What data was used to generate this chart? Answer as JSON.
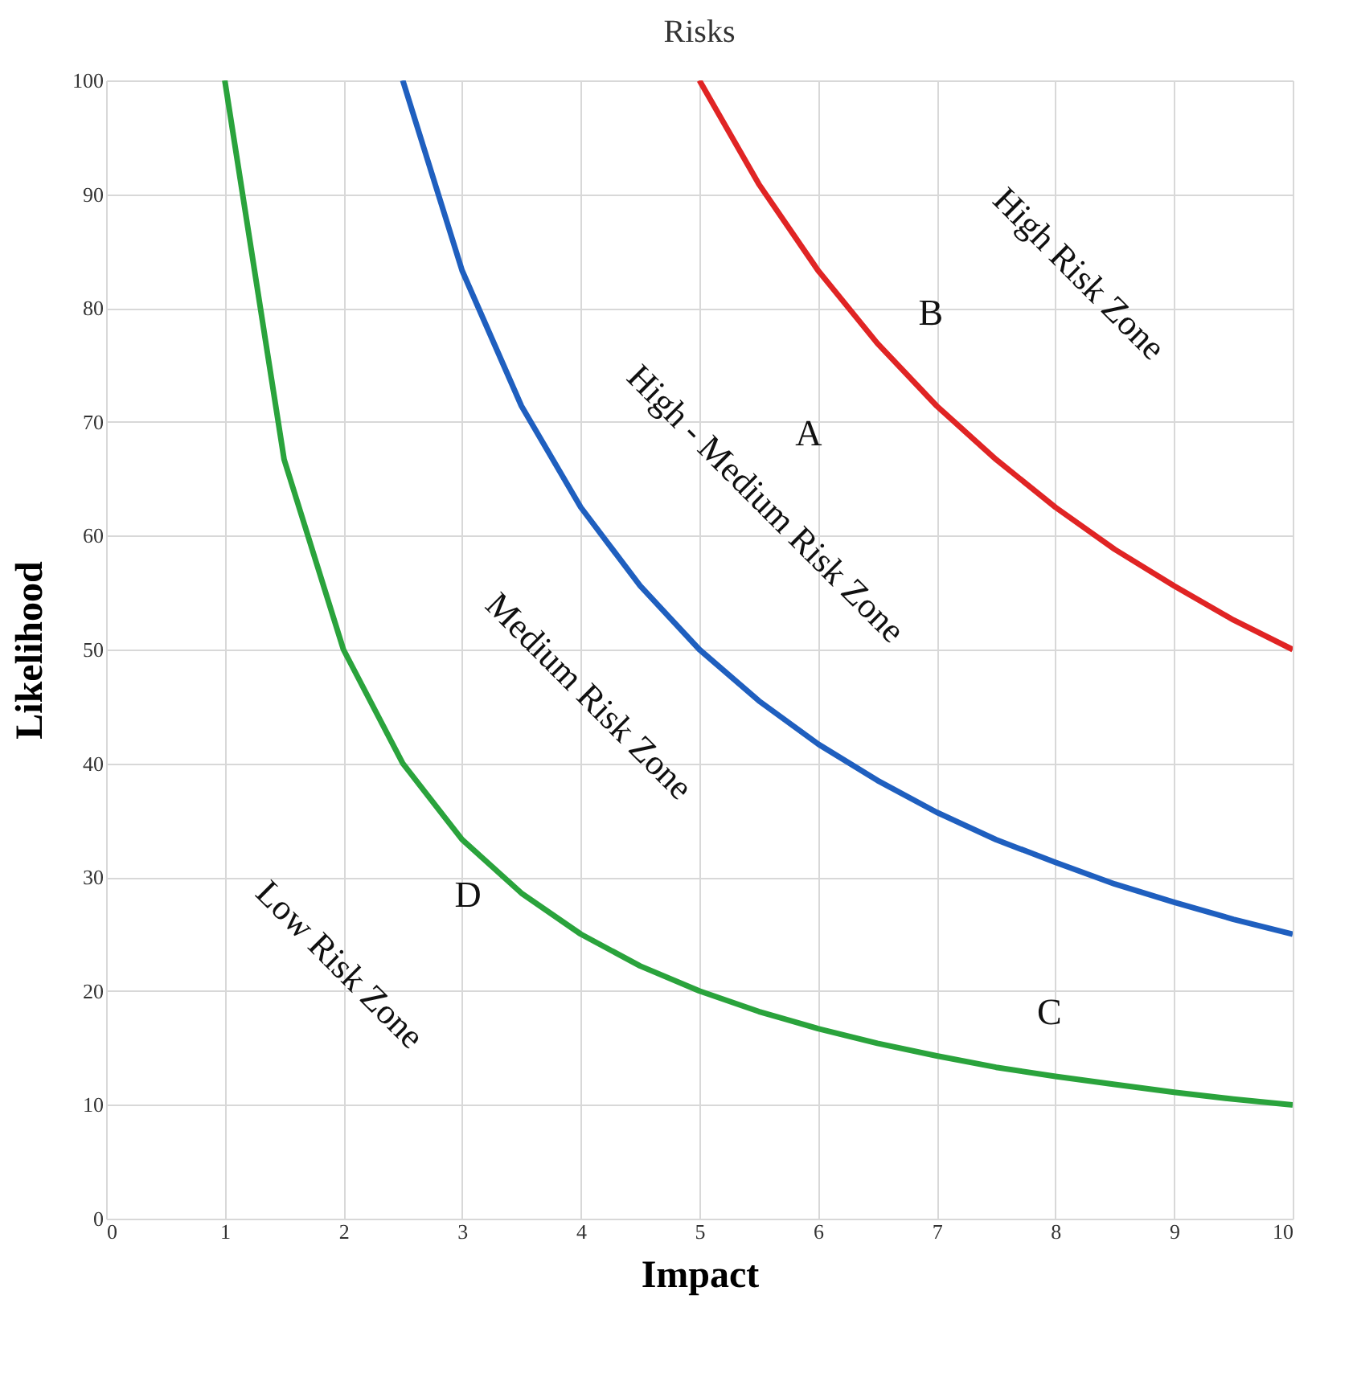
{
  "chart_data": {
    "type": "line",
    "title": "Risks",
    "xlabel": "Impact",
    "ylabel": "Likelihood",
    "xlim": [
      0,
      10
    ],
    "ylim": [
      0,
      100
    ],
    "xticks": [
      0,
      1,
      2,
      3,
      4,
      5,
      6,
      7,
      8,
      9,
      10
    ],
    "yticks": [
      0,
      10,
      20,
      30,
      40,
      50,
      60,
      70,
      80,
      90,
      100
    ],
    "grid": true,
    "series": [
      {
        "color": "#2aa33c",
        "x": [
          1,
          1.5,
          2,
          2.5,
          3,
          3.5,
          4,
          4.5,
          5,
          5.5,
          6,
          6.5,
          7,
          7.5,
          8,
          8.5,
          9,
          9.5,
          10
        ],
        "values": [
          100,
          66.7,
          50,
          40,
          33.3,
          28.6,
          25,
          22.2,
          20,
          18.2,
          16.7,
          15.4,
          14.3,
          13.3,
          12.5,
          11.8,
          11.1,
          10.5,
          10
        ]
      },
      {
        "color": "#1f5fbf",
        "x": [
          2.5,
          3,
          3.5,
          4,
          4.5,
          5,
          5.5,
          6,
          6.5,
          7,
          7.5,
          8,
          8.5,
          9,
          9.5,
          10
        ],
        "values": [
          100,
          83.3,
          71.4,
          62.5,
          55.6,
          50,
          45.5,
          41.7,
          38.5,
          35.7,
          33.3,
          31.3,
          29.4,
          27.8,
          26.3,
          25
        ]
      },
      {
        "color": "#e02424",
        "x": [
          5,
          5.5,
          6,
          6.5,
          7,
          7.5,
          8,
          8.5,
          9,
          9.5,
          10
        ],
        "values": [
          100,
          90.9,
          83.3,
          76.9,
          71.4,
          66.7,
          62.5,
          58.8,
          55.6,
          52.6,
          50
        ]
      }
    ],
    "annotations": [
      "High Risk Zone",
      "High - Medium Risk Zone",
      "Medium Risk Zone",
      "Low Risk Zone",
      "A",
      "B",
      "C",
      "D"
    ]
  }
}
